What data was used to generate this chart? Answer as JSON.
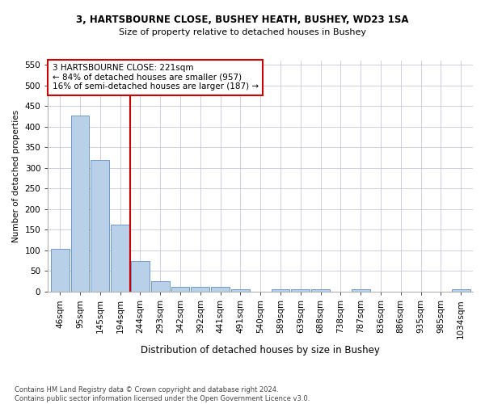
{
  "title": "3, HARTSBOURNE CLOSE, BUSHEY HEATH, BUSHEY, WD23 1SA",
  "subtitle": "Size of property relative to detached houses in Bushey",
  "xlabel": "Distribution of detached houses by size in Bushey",
  "ylabel": "Number of detached properties",
  "footer_line1": "Contains HM Land Registry data © Crown copyright and database right 2024.",
  "footer_line2": "Contains public sector information licensed under the Open Government Licence v3.0.",
  "bar_labels": [
    "46sqm",
    "95sqm",
    "145sqm",
    "194sqm",
    "244sqm",
    "293sqm",
    "342sqm",
    "392sqm",
    "441sqm",
    "491sqm",
    "540sqm",
    "589sqm",
    "639sqm",
    "688sqm",
    "738sqm",
    "787sqm",
    "836sqm",
    "886sqm",
    "935sqm",
    "985sqm",
    "1034sqm"
  ],
  "bar_values": [
    103,
    427,
    320,
    163,
    75,
    25,
    11,
    11,
    11,
    5,
    0,
    5,
    6,
    5,
    0,
    5,
    0,
    0,
    0,
    0,
    5
  ],
  "bar_color": "#b8d0e8",
  "bar_edge_color": "#6090c0",
  "vertical_line_x": 3.5,
  "vertical_line_color": "#cc0000",
  "annotation_line1": "3 HARTSBOURNE CLOSE: 221sqm",
  "annotation_line2": "← 84% of detached houses are smaller (957)",
  "annotation_line3": "16% of semi-detached houses are larger (187) →",
  "annotation_box_color": "#ffffff",
  "annotation_box_edge": "#cc0000",
  "ylim": [
    0,
    560
  ],
  "yticks": [
    0,
    50,
    100,
    150,
    200,
    250,
    300,
    350,
    400,
    450,
    500,
    550
  ],
  "background_color": "#ffffff",
  "grid_color": "#c8c8d8",
  "title_fontsize": 8.5,
  "subtitle_fontsize": 8.0,
  "xlabel_fontsize": 8.5,
  "ylabel_fontsize": 7.5,
  "tick_fontsize": 7.5,
  "annotation_fontsize": 7.5,
  "footer_fontsize": 6.0
}
